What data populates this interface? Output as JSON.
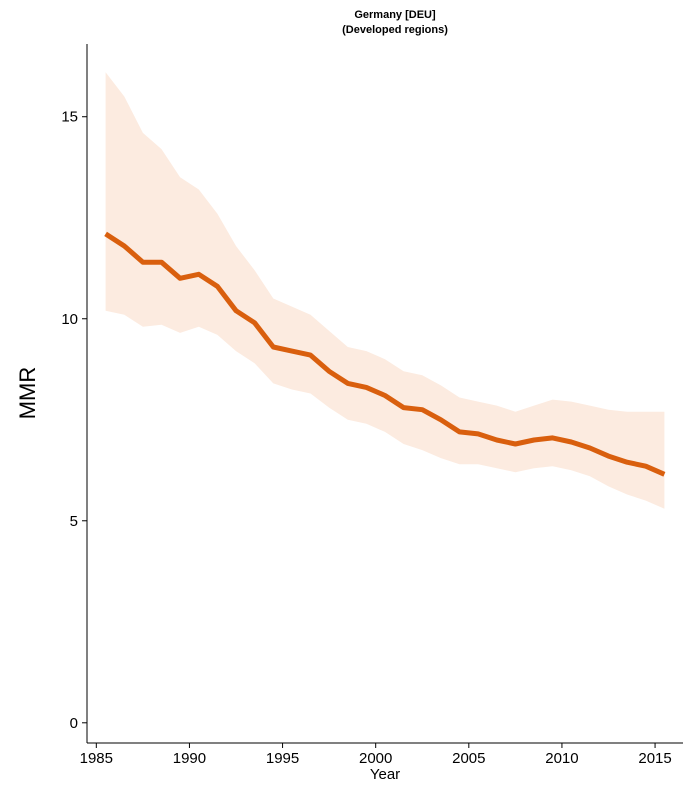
{
  "chart_data": {
    "type": "area",
    "title": "Germany [DEU]",
    "subtitle": "(Developed regions)",
    "xlabel": "Year",
    "ylabel": "MMR",
    "xlim": [
      1984.5,
      2016.5
    ],
    "ylim": [
      -0.5,
      16.8
    ],
    "xticks": [
      1985,
      1990,
      1995,
      2000,
      2005,
      2010,
      2015
    ],
    "yticks": [
      0,
      5,
      10,
      15
    ],
    "grid": false,
    "legend": "none",
    "colors": {
      "line": "#d95f0e",
      "band": "#fcebe0"
    },
    "series": [
      {
        "x": [
          1985.5,
          1986.5,
          1987.5,
          1988.5,
          1989.5,
          1990.5,
          1991.5,
          1992.5,
          1993.5,
          1994.5,
          1995.5,
          1996.5,
          1997.5,
          1998.5,
          1999.5,
          2000.5,
          2001.5,
          2002.5,
          2003.5,
          2004.5,
          2005.5,
          2006.5,
          2007.5,
          2008.5,
          2009.5,
          2010.5,
          2011.5,
          2012.5,
          2013.5,
          2014.5,
          2015.5
        ],
        "y": [
          12.1,
          11.8,
          11.4,
          11.4,
          11.0,
          11.1,
          10.8,
          10.2,
          9.9,
          9.3,
          9.2,
          9.1,
          8.7,
          8.4,
          8.3,
          8.1,
          7.8,
          7.75,
          7.5,
          7.2,
          7.15,
          7.0,
          6.9,
          7.0,
          7.05,
          6.95,
          6.8,
          6.6,
          6.45,
          6.35,
          6.15
        ],
        "lower": [
          10.2,
          10.1,
          9.8,
          9.85,
          9.65,
          9.8,
          9.6,
          9.2,
          8.9,
          8.4,
          8.25,
          8.15,
          7.8,
          7.5,
          7.4,
          7.2,
          6.9,
          6.75,
          6.55,
          6.4,
          6.4,
          6.3,
          6.2,
          6.3,
          6.35,
          6.25,
          6.1,
          5.85,
          5.65,
          5.5,
          5.3
        ],
        "upper": [
          16.1,
          15.5,
          14.6,
          14.2,
          13.5,
          13.2,
          12.6,
          11.8,
          11.2,
          10.5,
          10.3,
          10.1,
          9.7,
          9.3,
          9.2,
          9.0,
          8.7,
          8.6,
          8.35,
          8.05,
          7.95,
          7.85,
          7.7,
          7.85,
          8.0,
          7.95,
          7.85,
          7.75,
          7.7,
          7.7,
          7.7
        ]
      }
    ]
  }
}
